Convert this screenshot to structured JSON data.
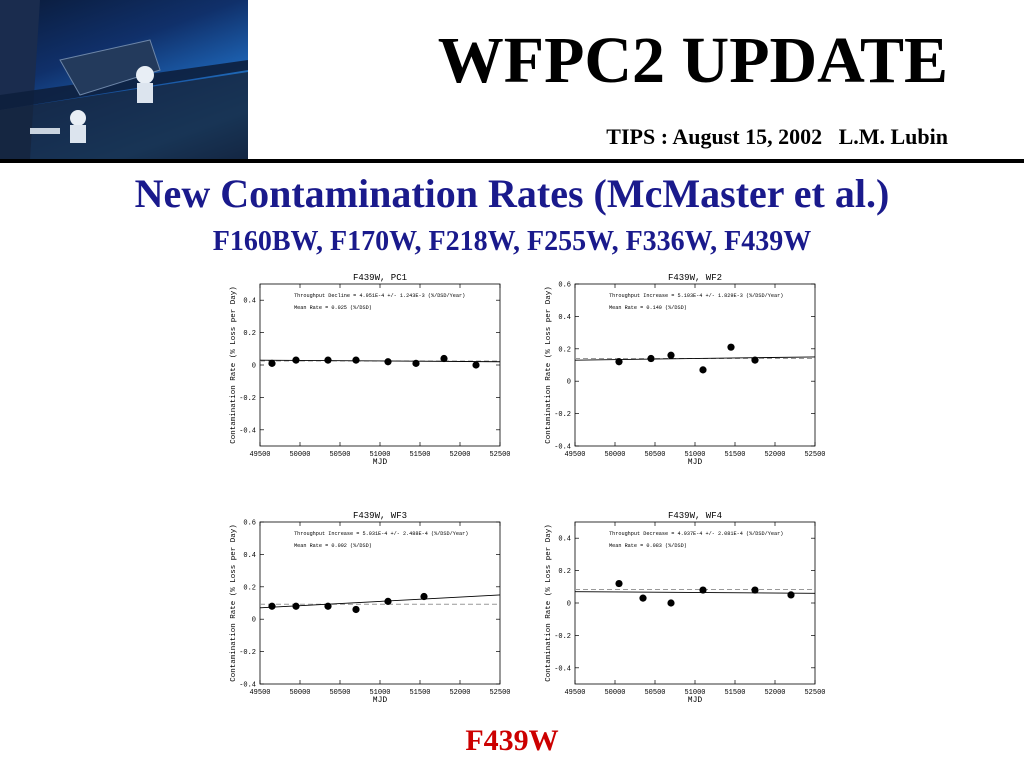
{
  "slide": {
    "title": "WFPC2 UPDATE",
    "subtitle": "TIPS : August 15, 2002   L.M. Lubin",
    "heading": "New Contamination Rates (McMaster et al.)",
    "filters": "F160BW, F170W, F218W, F255W, F336W, F439W",
    "footer": "F439W"
  },
  "colors": {
    "heading": "#1a1a8c",
    "footer": "#cc0000",
    "fit_line": "#000000",
    "mean_line": "#999999"
  },
  "chart_data": [
    {
      "type": "scatter",
      "title": "F439W, PC1",
      "xlabel": "MJD",
      "ylabel": "Contamination Rate (% Loss per Day)",
      "xlim": [
        49500,
        52500
      ],
      "ylim": [
        -0.5,
        0.5
      ],
      "xticks": [
        49500,
        50000,
        50500,
        51000,
        51500,
        52000,
        52500
      ],
      "yticks": [
        -0.4,
        -0.2,
        0,
        0.2,
        0.4
      ],
      "annotations": [
        "Throughput Decline = 4.951E-4 +/- 1.243E-3 (%/DSD/Year)",
        "Mean Rate = 0.025 (%/DSD)"
      ],
      "points": [
        [
          49650,
          0.01
        ],
        [
          49950,
          0.03
        ],
        [
          50350,
          0.03
        ],
        [
          50700,
          0.03
        ],
        [
          51100,
          0.02
        ],
        [
          51450,
          0.01
        ],
        [
          51800,
          0.04
        ],
        [
          52200,
          0.0
        ]
      ],
      "fit_line": [
        [
          49500,
          0.03
        ],
        [
          52500,
          0.02
        ]
      ],
      "mean_rate": 0.025
    },
    {
      "type": "scatter",
      "title": "F439W, WF2",
      "xlabel": "MJD",
      "ylabel": "Contamination Rate (% Loss per Day)",
      "xlim": [
        49500,
        52500
      ],
      "ylim": [
        -0.4,
        0.6
      ],
      "xticks": [
        49500,
        50000,
        50500,
        51000,
        51500,
        52000,
        52500
      ],
      "yticks": [
        -0.4,
        -0.2,
        0,
        0.2,
        0.4,
        0.6
      ],
      "annotations": [
        "Throughput Increase = 5.103E-4 +/- 1.829E-3 (%/DSD/Year)",
        "Mean Rate = 0.140 (%/DSD)"
      ],
      "points": [
        [
          50050,
          0.12
        ],
        [
          50450,
          0.14
        ],
        [
          50700,
          0.16
        ],
        [
          51100,
          0.07
        ],
        [
          51450,
          0.21
        ],
        [
          51750,
          0.13
        ]
      ],
      "fit_line": [
        [
          49500,
          0.13
        ],
        [
          52500,
          0.15
        ]
      ],
      "mean_rate": 0.14
    },
    {
      "type": "scatter",
      "title": "F439W, WF3",
      "xlabel": "MJD",
      "ylabel": "Contamination Rate (% Loss per Day)",
      "xlim": [
        49500,
        52500
      ],
      "ylim": [
        -0.4,
        0.6
      ],
      "xticks": [
        49500,
        50000,
        50500,
        51000,
        51500,
        52000,
        52500
      ],
      "yticks": [
        -0.4,
        -0.2,
        0,
        0.2,
        0.4,
        0.6
      ],
      "annotations": [
        "Throughput Increase = 5.031E-4 +/- 2.488E-4 (%/DSD/Year)",
        "Mean Rate = 0.092 (%/DSD)"
      ],
      "points": [
        [
          49650,
          0.08
        ],
        [
          49950,
          0.08
        ],
        [
          50350,
          0.08
        ],
        [
          50700,
          0.06
        ],
        [
          51100,
          0.11
        ],
        [
          51550,
          0.14
        ]
      ],
      "fit_line": [
        [
          49500,
          0.07
        ],
        [
          52500,
          0.15
        ]
      ],
      "mean_rate": 0.092
    },
    {
      "type": "scatter",
      "title": "F439W, WF4",
      "xlabel": "MJD",
      "ylabel": "Contamination Rate (% Loss per Day)",
      "xlim": [
        49500,
        52500
      ],
      "ylim": [
        -0.5,
        0.5
      ],
      "xticks": [
        49500,
        50000,
        50500,
        51000,
        51500,
        52000,
        52500
      ],
      "yticks": [
        -0.4,
        -0.2,
        0,
        0.2,
        0.4
      ],
      "annotations": [
        "Throughput Decrease = 4.937E-4 +/- 2.081E-4 (%/DSD/Year)",
        "Mean Rate = 0.083 (%/DSD)"
      ],
      "points": [
        [
          50050,
          0.12
        ],
        [
          50350,
          0.03
        ],
        [
          50700,
          0.0
        ],
        [
          51100,
          0.08
        ],
        [
          51750,
          0.08
        ],
        [
          52200,
          0.05
        ]
      ],
      "fit_line": [
        [
          49500,
          0.07
        ],
        [
          52500,
          0.06
        ]
      ],
      "mean_rate": 0.083
    }
  ]
}
